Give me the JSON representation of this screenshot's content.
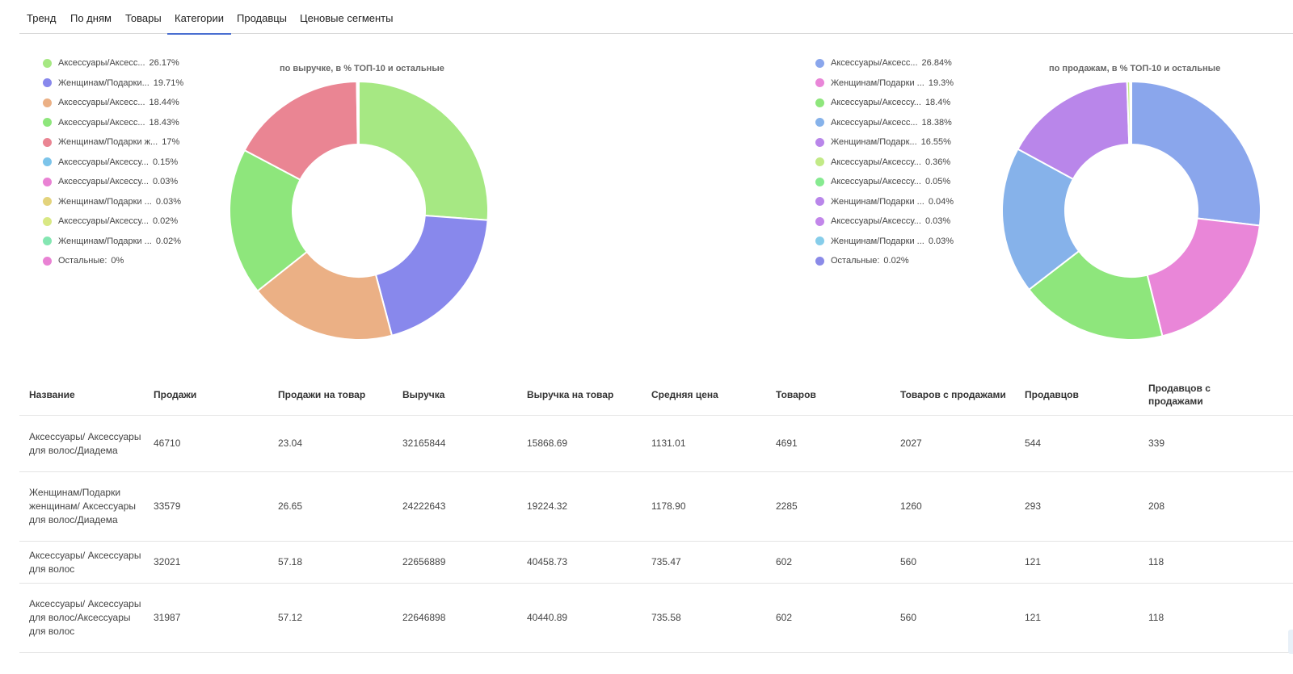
{
  "tabs": [
    {
      "label": "Тренд"
    },
    {
      "label": "По дням"
    },
    {
      "label": "Товары"
    },
    {
      "label": "Категории",
      "active": true
    },
    {
      "label": "Продавцы"
    },
    {
      "label": "Ценовые сегменты"
    }
  ],
  "chart_data": [
    {
      "type": "pie",
      "title": "по выручке, в % ТОП-10 и остальные",
      "legend_position": "left",
      "slices": [
        {
          "label": "Аксессуары/Аксесс...",
          "display": "26.17%",
          "value": 26.17,
          "color": "#a6e883"
        },
        {
          "label": "Женщинам/Подарки...",
          "display": "19.71%",
          "value": 19.71,
          "color": "#8888ec"
        },
        {
          "label": "Аксессуары/Аксесс...",
          "display": "18.44%",
          "value": 18.44,
          "color": "#ebb085"
        },
        {
          "label": "Аксессуары/Аксесс...",
          "display": "18.43%",
          "value": 18.43,
          "color": "#8ee67c"
        },
        {
          "label": "Женщинам/Подарки ж...",
          "display": "17%",
          "value": 17,
          "color": "#ea8593"
        },
        {
          "label": "Аксессуары/Аксессу...",
          "display": "0.15%",
          "value": 0.15,
          "color": "#7cc4ea"
        },
        {
          "label": "Аксессуары/Аксессу...",
          "display": "0.03%",
          "value": 0.03,
          "color": "#e982d4"
        },
        {
          "label": "Женщинам/Подарки ...",
          "display": "0.03%",
          "value": 0.03,
          "color": "#e3d37c"
        },
        {
          "label": "Аксессуары/Аксессу...",
          "display": "0.02%",
          "value": 0.02,
          "color": "#d9e884"
        },
        {
          "label": "Женщинам/Подарки ...",
          "display": "0.02%",
          "value": 0.02,
          "color": "#84e6b2"
        },
        {
          "label": "Остальные:",
          "display": "0%",
          "value": 0,
          "color": "#e982d4"
        }
      ]
    },
    {
      "type": "pie",
      "title": "по продажам, в % ТОП-10 и остальные",
      "legend_position": "left",
      "slices": [
        {
          "label": "Аксессуары/Аксесс...",
          "display": "26.84%",
          "value": 26.84,
          "color": "#8aa6ec"
        },
        {
          "label": "Женщинам/Подарки ...",
          "display": "19.3%",
          "value": 19.3,
          "color": "#e986d8"
        },
        {
          "label": "Аксессуары/Аксессу...",
          "display": "18.4%",
          "value": 18.4,
          "color": "#8ee67c"
        },
        {
          "label": "Аксессуары/Аксесс...",
          "display": "18.38%",
          "value": 18.38,
          "color": "#86b2ea"
        },
        {
          "label": "Женщинам/Подарк...",
          "display": "16.55%",
          "value": 16.55,
          "color": "#b986ea"
        },
        {
          "label": "Аксессуары/Аксессу...",
          "display": "0.36%",
          "value": 0.36,
          "color": "#c2ea86"
        },
        {
          "label": "Аксессуары/Аксессу...",
          "display": "0.05%",
          "value": 0.05,
          "color": "#86ea90"
        },
        {
          "label": "Женщинам/Подарки ...",
          "display": "0.04%",
          "value": 0.04,
          "color": "#b986ea"
        },
        {
          "label": "Аксессуары/Аксессу...",
          "display": "0.03%",
          "value": 0.03,
          "color": "#c286ea"
        },
        {
          "label": "Женщинам/Подарки ...",
          "display": "0.03%",
          "value": 0.03,
          "color": "#86cdea"
        },
        {
          "label": "Остальные:",
          "display": "0.02%",
          "value": 0.02,
          "color": "#8a8ae8"
        }
      ]
    }
  ],
  "table": {
    "headers": [
      "Название",
      "Продажи",
      "Продажи на товар",
      "Выручка",
      "Выручка на товар",
      "Средняя цена",
      "Товаров",
      "Товаров с продажами",
      "Продавцов",
      "Продавцов с продажами"
    ],
    "rows": [
      [
        "Аксессуары/ Аксессуары для волос/Диадема",
        "46710",
        "23.04",
        "32165844",
        "15868.69",
        "1131.01",
        "4691",
        "2027",
        "544",
        "339"
      ],
      [
        "Женщинам/Подарки женщинам/ Аксессуары для волос/Диадема",
        "33579",
        "26.65",
        "24222643",
        "19224.32",
        "1178.90",
        "2285",
        "1260",
        "293",
        "208"
      ],
      [
        "Аксессуары/ Аксессуары для волос",
        "32021",
        "57.18",
        "22656889",
        "40458.73",
        "735.47",
        "602",
        "560",
        "121",
        "118"
      ],
      [
        "Аксессуары/ Аксессуары для волос/Аксессуары для волос",
        "31987",
        "57.12",
        "22646898",
        "40440.89",
        "735.58",
        "602",
        "560",
        "121",
        "118"
      ]
    ]
  }
}
